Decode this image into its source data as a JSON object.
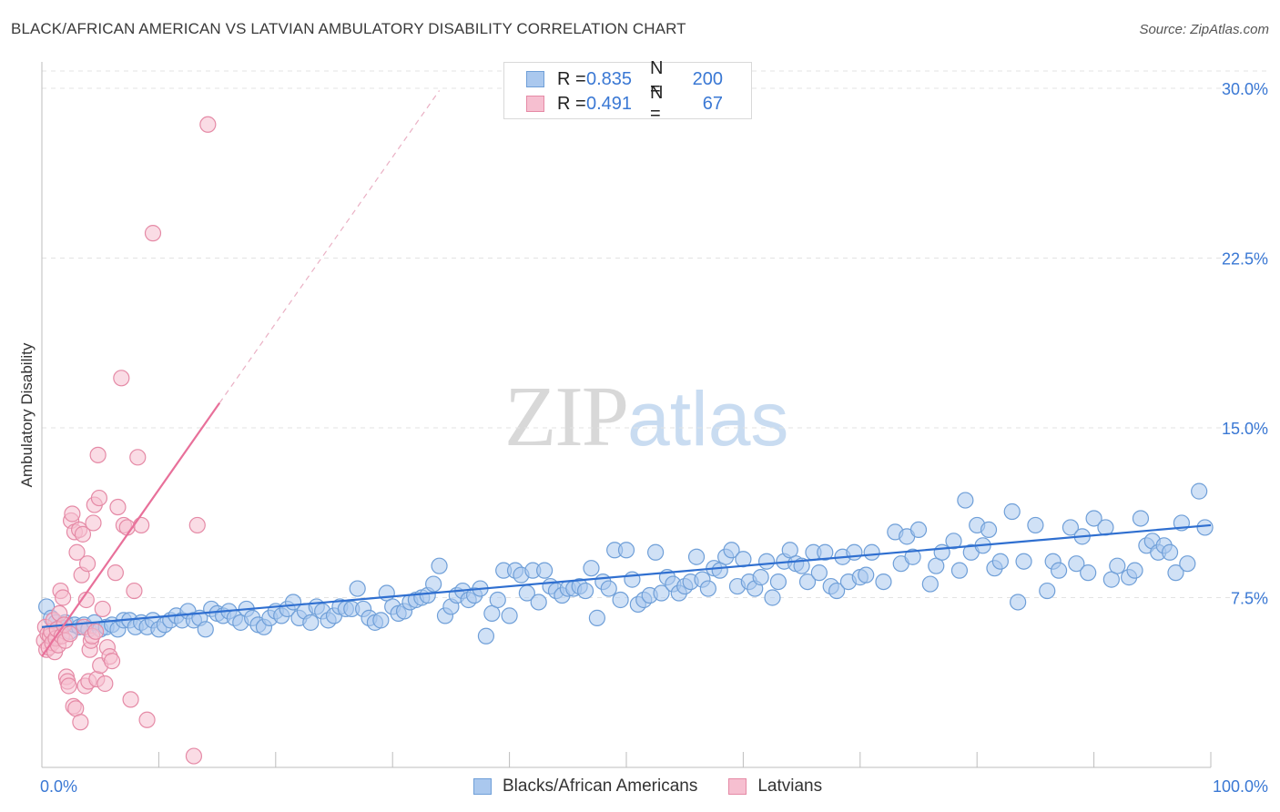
{
  "header": {
    "title": "BLACK/AFRICAN AMERICAN VS LATVIAN AMBULATORY DISABILITY CORRELATION CHART",
    "source": "Source: ZipAtlas.com"
  },
  "watermark": {
    "zip": "ZIP",
    "atlas": "atlas"
  },
  "legend": {
    "rows": [
      {
        "r_label": "R =",
        "r_value": "0.835",
        "n_label": "N =",
        "n_value": "200",
        "color": "#aac8ee",
        "border": "#6f9fd8"
      },
      {
        "r_label": "R =",
        "r_value": "0.491",
        "n_label": "N =",
        "n_value": "67",
        "color": "#f6bfd0",
        "border": "#e58aa6"
      }
    ]
  },
  "bottom_legend": {
    "items": [
      {
        "label": "Blacks/African Americans",
        "color": "#aac8ee",
        "border": "#6f9fd8"
      },
      {
        "label": "Latvians",
        "color": "#f6bfd0",
        "border": "#e58aa6"
      }
    ]
  },
  "chart_data": {
    "type": "scatter",
    "title": "BLACK/AFRICAN AMERICAN VS LATVIAN AMBULATORY DISABILITY CORRELATION CHART",
    "xlabel": "",
    "ylabel": "Ambulatory Disability",
    "xlim": [
      0,
      100
    ],
    "ylim": [
      0,
      31.5
    ],
    "x_tick_labels": [
      "0.0%",
      "100.0%"
    ],
    "y_ticks": [
      7.5,
      15.0,
      22.5,
      30.0
    ],
    "y_tick_labels": [
      "7.5%",
      "15.0%",
      "22.5%",
      "30.0%"
    ],
    "grid": true,
    "legend_position": "top-center",
    "series": [
      {
        "name": "Blacks/African Americans",
        "color": "#aac8ee",
        "border": "#6f9fd8",
        "line_color": "#2f6fd0",
        "trend": {
          "x": [
            0,
            100
          ],
          "y": [
            6.2,
            10.7
          ]
        },
        "points": [
          [
            0.4,
            7.1
          ],
          [
            0.8,
            6.6
          ],
          [
            1.2,
            6.4
          ],
          [
            1.6,
            6.2
          ],
          [
            2.0,
            6.4
          ],
          [
            2.4,
            6.0
          ],
          [
            2.8,
            6.3
          ],
          [
            3.2,
            6.2
          ],
          [
            3.6,
            6.3
          ],
          [
            4.0,
            6.1
          ],
          [
            4.5,
            6.4
          ],
          [
            5.0,
            6.1
          ],
          [
            5.5,
            6.2
          ],
          [
            6.0,
            6.3
          ],
          [
            6.5,
            6.1
          ],
          [
            7.0,
            6.5
          ],
          [
            7.5,
            6.5
          ],
          [
            8.0,
            6.2
          ],
          [
            8.5,
            6.4
          ],
          [
            9.0,
            6.2
          ],
          [
            9.5,
            6.5
          ],
          [
            10.0,
            6.1
          ],
          [
            10.5,
            6.3
          ],
          [
            11.0,
            6.5
          ],
          [
            11.5,
            6.7
          ],
          [
            12.0,
            6.5
          ],
          [
            12.5,
            6.9
          ],
          [
            13.0,
            6.5
          ],
          [
            13.5,
            6.6
          ],
          [
            14.0,
            6.1
          ],
          [
            14.5,
            7.0
          ],
          [
            15.0,
            6.8
          ],
          [
            15.5,
            6.7
          ],
          [
            16.0,
            6.9
          ],
          [
            16.5,
            6.6
          ],
          [
            17.0,
            6.4
          ],
          [
            17.5,
            7.0
          ],
          [
            18.0,
            6.6
          ],
          [
            18.5,
            6.3
          ],
          [
            19.0,
            6.2
          ],
          [
            19.5,
            6.6
          ],
          [
            20.0,
            6.9
          ],
          [
            20.5,
            6.7
          ],
          [
            21.0,
            7.0
          ],
          [
            21.5,
            7.3
          ],
          [
            22.0,
            6.6
          ],
          [
            22.5,
            6.9
          ],
          [
            23.0,
            6.4
          ],
          [
            23.5,
            7.1
          ],
          [
            24.0,
            6.9
          ],
          [
            24.5,
            6.5
          ],
          [
            25.0,
            6.7
          ],
          [
            25.5,
            7.1
          ],
          [
            26.0,
            7.0
          ],
          [
            26.5,
            7.0
          ],
          [
            27.0,
            7.9
          ],
          [
            27.5,
            7.0
          ],
          [
            28.0,
            6.6
          ],
          [
            28.5,
            6.4
          ],
          [
            29.0,
            6.5
          ],
          [
            29.5,
            7.7
          ],
          [
            30.0,
            7.1
          ],
          [
            30.5,
            6.8
          ],
          [
            31.0,
            6.9
          ],
          [
            31.5,
            7.3
          ],
          [
            32.0,
            7.4
          ],
          [
            32.5,
            7.5
          ],
          [
            33.0,
            7.6
          ],
          [
            33.5,
            8.1
          ],
          [
            34.0,
            8.9
          ],
          [
            34.5,
            6.7
          ],
          [
            35.0,
            7.1
          ],
          [
            35.5,
            7.6
          ],
          [
            36.0,
            7.8
          ],
          [
            36.5,
            7.4
          ],
          [
            37.0,
            7.6
          ],
          [
            37.5,
            7.9
          ],
          [
            38.0,
            5.8
          ],
          [
            38.5,
            6.8
          ],
          [
            39.0,
            7.4
          ],
          [
            39.5,
            8.7
          ],
          [
            40.0,
            6.7
          ],
          [
            40.5,
            8.7
          ],
          [
            41.0,
            8.5
          ],
          [
            41.5,
            7.7
          ],
          [
            42.0,
            8.7
          ],
          [
            42.5,
            7.3
          ],
          [
            43.0,
            8.7
          ],
          [
            43.5,
            8.0
          ],
          [
            44.0,
            7.8
          ],
          [
            44.5,
            7.6
          ],
          [
            45.0,
            7.9
          ],
          [
            45.5,
            7.9
          ],
          [
            46.0,
            8.0
          ],
          [
            46.5,
            7.8
          ],
          [
            47.0,
            8.8
          ],
          [
            47.5,
            6.6
          ],
          [
            48.0,
            8.2
          ],
          [
            48.5,
            7.9
          ],
          [
            49.0,
            9.6
          ],
          [
            49.5,
            7.4
          ],
          [
            50.0,
            9.6
          ],
          [
            50.5,
            8.3
          ],
          [
            51.0,
            7.2
          ],
          [
            51.5,
            7.4
          ],
          [
            52.0,
            7.6
          ],
          [
            52.5,
            9.5
          ],
          [
            53.0,
            7.7
          ],
          [
            53.5,
            8.4
          ],
          [
            54.0,
            8.1
          ],
          [
            54.5,
            7.7
          ],
          [
            55.0,
            8.0
          ],
          [
            55.5,
            8.2
          ],
          [
            56.0,
            9.3
          ],
          [
            56.5,
            8.3
          ],
          [
            57.0,
            7.9
          ],
          [
            57.5,
            8.8
          ],
          [
            58.0,
            8.7
          ],
          [
            58.5,
            9.3
          ],
          [
            59.0,
            9.6
          ],
          [
            59.5,
            8.0
          ],
          [
            60.0,
            9.2
          ],
          [
            60.5,
            8.2
          ],
          [
            61.0,
            7.9
          ],
          [
            61.5,
            8.4
          ],
          [
            62.0,
            9.1
          ],
          [
            62.5,
            7.5
          ],
          [
            63.0,
            8.2
          ],
          [
            63.5,
            9.1
          ],
          [
            64.0,
            9.6
          ],
          [
            64.5,
            9.0
          ],
          [
            65.0,
            8.9
          ],
          [
            65.5,
            8.2
          ],
          [
            66.0,
            9.5
          ],
          [
            66.5,
            8.6
          ],
          [
            67.0,
            9.5
          ],
          [
            67.5,
            8.0
          ],
          [
            68.0,
            7.8
          ],
          [
            68.5,
            9.3
          ],
          [
            69.0,
            8.2
          ],
          [
            69.5,
            9.5
          ],
          [
            70.0,
            8.4
          ],
          [
            70.5,
            8.5
          ],
          [
            71.0,
            9.5
          ],
          [
            72.0,
            8.2
          ],
          [
            73.0,
            10.4
          ],
          [
            73.5,
            9.0
          ],
          [
            74.0,
            10.2
          ],
          [
            74.5,
            9.3
          ],
          [
            75.0,
            10.5
          ],
          [
            76.0,
            8.1
          ],
          [
            76.5,
            8.9
          ],
          [
            77.0,
            9.5
          ],
          [
            78.0,
            10.0
          ],
          [
            78.5,
            8.7
          ],
          [
            79.0,
            11.8
          ],
          [
            79.5,
            9.5
          ],
          [
            80.0,
            10.7
          ],
          [
            80.5,
            9.8
          ],
          [
            81.0,
            10.5
          ],
          [
            81.5,
            8.8
          ],
          [
            82.0,
            9.1
          ],
          [
            83.0,
            11.3
          ],
          [
            83.5,
            7.3
          ],
          [
            84.0,
            9.1
          ],
          [
            85.0,
            10.7
          ],
          [
            86.0,
            7.8
          ],
          [
            86.5,
            9.1
          ],
          [
            87.0,
            8.7
          ],
          [
            88.0,
            10.6
          ],
          [
            88.5,
            9.0
          ],
          [
            89.0,
            10.2
          ],
          [
            89.5,
            8.6
          ],
          [
            90.0,
            11.0
          ],
          [
            91.0,
            10.6
          ],
          [
            91.5,
            8.3
          ],
          [
            92.0,
            8.9
          ],
          [
            93.0,
            8.4
          ],
          [
            93.5,
            8.7
          ],
          [
            94.0,
            11.0
          ],
          [
            94.5,
            9.8
          ],
          [
            95.0,
            10.0
          ],
          [
            95.5,
            9.5
          ],
          [
            96.0,
            9.8
          ],
          [
            96.5,
            9.5
          ],
          [
            97.0,
            8.6
          ],
          [
            97.5,
            10.8
          ],
          [
            98.0,
            9.0
          ],
          [
            99.0,
            12.2
          ],
          [
            99.5,
            10.6
          ]
        ]
      },
      {
        "name": "Latvians",
        "color": "#f6bfd0",
        "border": "#e58aa6",
        "line_color": "#e8709a",
        "trend": {
          "x": [
            0,
            15.2
          ],
          "y": [
            4.9,
            16.1
          ]
        },
        "trend_dashed": {
          "x": [
            15.2,
            34.0
          ],
          "y": [
            16.1,
            29.9
          ]
        },
        "points": [
          [
            0.2,
            5.6
          ],
          [
            0.3,
            6.2
          ],
          [
            0.4,
            5.2
          ],
          [
            0.5,
            5.9
          ],
          [
            0.6,
            5.3
          ],
          [
            0.7,
            5.8
          ],
          [
            0.8,
            6.0
          ],
          [
            0.9,
            5.5
          ],
          [
            1.0,
            6.5
          ],
          [
            1.1,
            5.1
          ],
          [
            1.2,
            5.7
          ],
          [
            1.3,
            6.1
          ],
          [
            1.4,
            5.4
          ],
          [
            1.5,
            6.8
          ],
          [
            1.6,
            7.8
          ],
          [
            1.7,
            5.8
          ],
          [
            1.8,
            7.5
          ],
          [
            1.9,
            6.3
          ],
          [
            2.0,
            5.6
          ],
          [
            2.1,
            4.0
          ],
          [
            2.2,
            3.8
          ],
          [
            2.3,
            3.6
          ],
          [
            2.4,
            5.9
          ],
          [
            2.5,
            10.9
          ],
          [
            2.6,
            11.2
          ],
          [
            2.7,
            2.7
          ],
          [
            2.8,
            10.4
          ],
          [
            2.9,
            2.6
          ],
          [
            3.0,
            9.5
          ],
          [
            3.2,
            10.5
          ],
          [
            3.3,
            2.0
          ],
          [
            3.4,
            8.5
          ],
          [
            3.5,
            10.3
          ],
          [
            3.6,
            6.2
          ],
          [
            3.7,
            3.6
          ],
          [
            3.8,
            7.4
          ],
          [
            3.9,
            9.0
          ],
          [
            4.0,
            3.8
          ],
          [
            4.1,
            5.2
          ],
          [
            4.2,
            5.6
          ],
          [
            4.3,
            5.8
          ],
          [
            4.4,
            10.8
          ],
          [
            4.5,
            11.6
          ],
          [
            4.6,
            6.0
          ],
          [
            4.7,
            3.9
          ],
          [
            4.8,
            13.8
          ],
          [
            4.9,
            11.9
          ],
          [
            5.0,
            4.5
          ],
          [
            5.2,
            7.0
          ],
          [
            5.4,
            3.7
          ],
          [
            5.6,
            5.3
          ],
          [
            5.8,
            4.9
          ],
          [
            6.0,
            4.7
          ],
          [
            6.3,
            8.6
          ],
          [
            6.5,
            11.5
          ],
          [
            6.8,
            17.2
          ],
          [
            7.0,
            10.7
          ],
          [
            7.3,
            10.6
          ],
          [
            7.6,
            3.0
          ],
          [
            7.9,
            7.8
          ],
          [
            8.2,
            13.7
          ],
          [
            8.5,
            10.7
          ],
          [
            9.0,
            2.1
          ],
          [
            9.5,
            23.6
          ],
          [
            14.2,
            28.4
          ],
          [
            13.0,
            0.5
          ],
          [
            13.3,
            10.7
          ]
        ]
      }
    ]
  }
}
